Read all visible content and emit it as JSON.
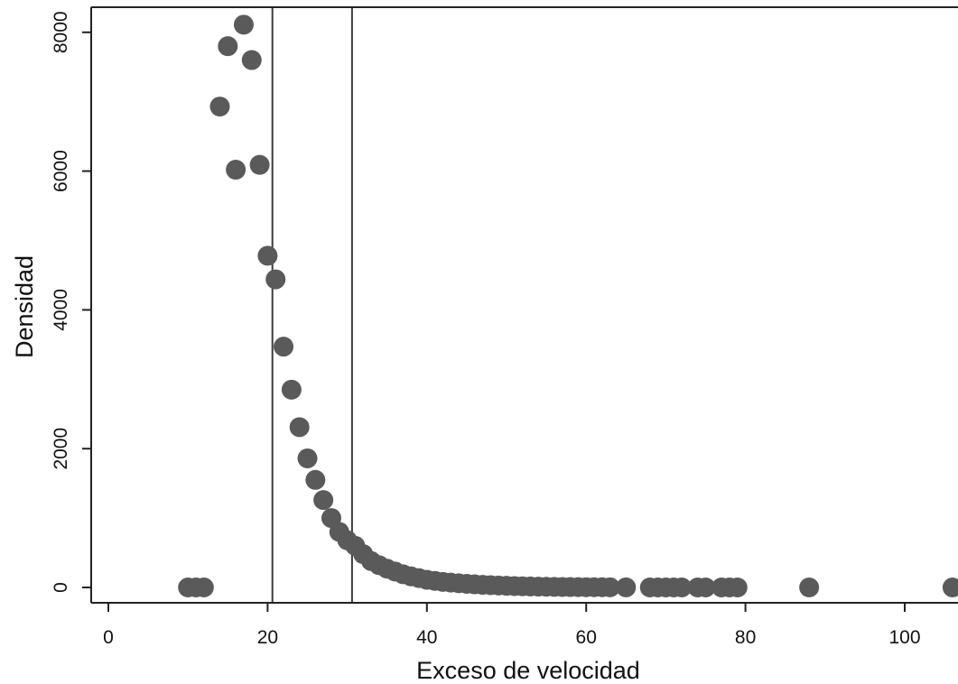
{
  "chart_data": {
    "type": "scatter",
    "title": "",
    "xlabel": "Exceso de velocidad",
    "ylabel": "Densidad",
    "xlim": [
      -2,
      107
    ],
    "ylim": [
      -240,
      8400
    ],
    "xticks": [
      0,
      20,
      40,
      60,
      80,
      100
    ],
    "yticks": [
      0,
      2000,
      4000,
      6000,
      8000
    ],
    "xtick_labels": [
      "0",
      "20",
      "40",
      "60",
      "80",
      "100"
    ],
    "ytick_labels": [
      "0",
      "2000",
      "4000",
      "6000",
      "8000"
    ],
    "grid": false,
    "vlines": [
      20.6,
      30.6
    ],
    "marker_color": "#5a5a5a",
    "line_color": "#3c3c3c",
    "points": [
      [
        10,
        0
      ],
      [
        11,
        0
      ],
      [
        12,
        0
      ],
      [
        14,
        6930
      ],
      [
        15,
        7800
      ],
      [
        16,
        6020
      ],
      [
        17,
        8110
      ],
      [
        18,
        7600
      ],
      [
        19,
        6090
      ],
      [
        20,
        4780
      ],
      [
        21,
        4440
      ],
      [
        22,
        3470
      ],
      [
        23,
        2850
      ],
      [
        24,
        2310
      ],
      [
        25,
        1860
      ],
      [
        26,
        1550
      ],
      [
        27,
        1260
      ],
      [
        28,
        1000
      ],
      [
        29,
        800
      ],
      [
        30,
        680
      ],
      [
        31,
        600
      ],
      [
        32,
        480
      ],
      [
        33,
        380
      ],
      [
        34,
        320
      ],
      [
        35,
        270
      ],
      [
        36,
        230
      ],
      [
        37,
        190
      ],
      [
        38,
        160
      ],
      [
        39,
        135
      ],
      [
        40,
        110
      ],
      [
        41,
        95
      ],
      [
        42,
        80
      ],
      [
        43,
        70
      ],
      [
        44,
        60
      ],
      [
        45,
        52
      ],
      [
        46,
        45
      ],
      [
        47,
        38
      ],
      [
        48,
        33
      ],
      [
        49,
        28
      ],
      [
        50,
        24
      ],
      [
        51,
        20
      ],
      [
        52,
        17
      ],
      [
        53,
        14
      ],
      [
        54,
        12
      ],
      [
        55,
        10
      ],
      [
        56,
        8
      ],
      [
        57,
        7
      ],
      [
        58,
        6
      ],
      [
        59,
        5
      ],
      [
        60,
        4
      ],
      [
        61,
        3
      ],
      [
        62,
        3
      ],
      [
        63,
        2
      ],
      [
        65,
        1
      ],
      [
        68,
        0
      ],
      [
        69,
        0
      ],
      [
        70,
        0
      ],
      [
        71,
        0
      ],
      [
        72,
        0
      ],
      [
        74,
        0
      ],
      [
        75,
        0
      ],
      [
        77,
        0
      ],
      [
        78,
        0
      ],
      [
        79,
        0
      ],
      [
        88,
        0
      ],
      [
        106,
        0
      ]
    ]
  }
}
